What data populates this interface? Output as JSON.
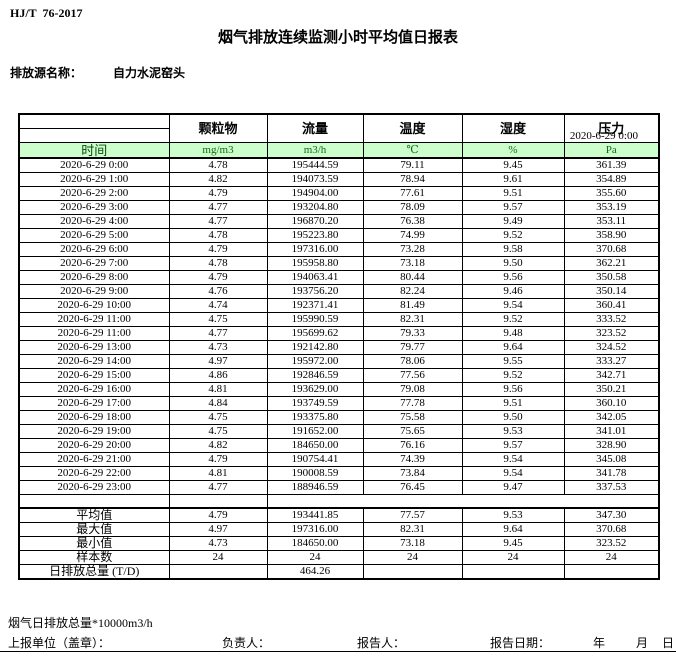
{
  "doc": {
    "standard": "HJ/T  76-2017",
    "title": "烟气排放连续监测小时平均值日报表",
    "source_label": "排放源名称：",
    "source_name": "自力水泥窑头",
    "datetime": "2020-6-29 0:00"
  },
  "table": {
    "time_header": "时间",
    "columns": [
      "颗粒物",
      "流量",
      "温度",
      "湿度",
      "压力"
    ],
    "units": [
      "mg/m3",
      "m3/h",
      "℃",
      "%",
      "Pa"
    ],
    "rows": [
      {
        "time": "2020-6-29 0:00",
        "values": [
          "4.78",
          "195444.59",
          "79.11",
          "9.45",
          "361.39"
        ]
      },
      {
        "time": "2020-6-29 1:00",
        "values": [
          "4.82",
          "194073.59",
          "78.94",
          "9.61",
          "354.89"
        ]
      },
      {
        "time": "2020-6-29 2:00",
        "values": [
          "4.79",
          "194904.00",
          "77.61",
          "9.51",
          "355.60"
        ]
      },
      {
        "time": "2020-6-29 3:00",
        "values": [
          "4.77",
          "193204.80",
          "78.09",
          "9.57",
          "353.19"
        ]
      },
      {
        "time": "2020-6-29 4:00",
        "values": [
          "4.77",
          "196870.20",
          "76.38",
          "9.49",
          "353.11"
        ]
      },
      {
        "time": "2020-6-29 5:00",
        "values": [
          "4.78",
          "195223.80",
          "74.99",
          "9.52",
          "358.90"
        ]
      },
      {
        "time": "2020-6-29 6:00",
        "values": [
          "4.79",
          "197316.00",
          "73.28",
          "9.58",
          "370.68"
        ]
      },
      {
        "time": "2020-6-29 7:00",
        "values": [
          "4.78",
          "195958.80",
          "73.18",
          "9.50",
          "362.21"
        ]
      },
      {
        "time": "2020-6-29 8:00",
        "values": [
          "4.79",
          "194063.41",
          "80.44",
          "9.56",
          "350.58"
        ]
      },
      {
        "time": "2020-6-29 9:00",
        "values": [
          "4.76",
          "193756.20",
          "82.24",
          "9.46",
          "350.14"
        ]
      },
      {
        "time": "2020-6-29 10:00",
        "values": [
          "4.74",
          "192371.41",
          "81.49",
          "9.54",
          "360.41"
        ]
      },
      {
        "time": "2020-6-29 11:00",
        "values": [
          "4.75",
          "195990.59",
          "82.31",
          "9.52",
          "333.52"
        ]
      },
      {
        "time": "2020-6-29 11:00",
        "values": [
          "4.77",
          "195699.62",
          "79.33",
          "9.48",
          "323.52"
        ]
      },
      {
        "time": "2020-6-29 13:00",
        "values": [
          "4.73",
          "192142.80",
          "79.77",
          "9.64",
          "324.52"
        ]
      },
      {
        "time": "2020-6-29 14:00",
        "values": [
          "4.97",
          "195972.00",
          "78.06",
          "9.55",
          "333.27"
        ]
      },
      {
        "time": "2020-6-29 15:00",
        "values": [
          "4.86",
          "192846.59",
          "77.56",
          "9.52",
          "342.71"
        ]
      },
      {
        "time": "2020-6-29 16:00",
        "values": [
          "4.81",
          "193629.00",
          "79.08",
          "9.56",
          "350.21"
        ]
      },
      {
        "time": "2020-6-29 17:00",
        "values": [
          "4.84",
          "193749.59",
          "77.78",
          "9.51",
          "360.10"
        ]
      },
      {
        "time": "2020-6-29 18:00",
        "values": [
          "4.75",
          "193375.80",
          "75.58",
          "9.50",
          "342.05"
        ]
      },
      {
        "time": "2020-6-29 19:00",
        "values": [
          "4.75",
          "191652.00",
          "75.65",
          "9.53",
          "341.01"
        ]
      },
      {
        "time": "2020-6-29 20:00",
        "values": [
          "4.82",
          "184650.00",
          "76.16",
          "9.57",
          "328.90"
        ]
      },
      {
        "time": "2020-6-29 21:00",
        "values": [
          "4.79",
          "190754.41",
          "74.39",
          "9.54",
          "345.08"
        ]
      },
      {
        "time": "2020-6-29 22:00",
        "values": [
          "4.81",
          "190008.59",
          "73.84",
          "9.54",
          "341.78"
        ]
      },
      {
        "time": "2020-6-29 23:00",
        "values": [
          "4.77",
          "188946.59",
          "76.45",
          "9.47",
          "337.53"
        ]
      }
    ],
    "summary": [
      {
        "label": "平均值",
        "values": [
          "4.79",
          "193441.85",
          "77.57",
          "9.53",
          "347.30"
        ]
      },
      {
        "label": "最大值",
        "values": [
          "4.97",
          "197316.00",
          "82.31",
          "9.64",
          "370.68"
        ]
      },
      {
        "label": "最小值",
        "values": [
          "4.73",
          "184650.00",
          "73.18",
          "9.45",
          "323.52"
        ]
      },
      {
        "label": "样本数",
        "values": [
          "24",
          "24",
          "24",
          "24",
          "24"
        ]
      },
      {
        "label": "日排放总量 (T/D)",
        "values": [
          "",
          "464.26",
          "",
          "",
          ""
        ]
      }
    ]
  },
  "footer": {
    "note": "烟气日排放总量*10000m3/h",
    "report_unit_label": "上报单位（盖章）：",
    "responsible_label": "负责人：",
    "reporter_label": "报告人：",
    "report_date_label": "报告日期：",
    "year_label": "年",
    "month_label": "月",
    "day_label": "日"
  },
  "colors": {
    "header_green_bg": "#ccffcc",
    "unit_text_green": "#156b15",
    "border_black": "#000000"
  }
}
